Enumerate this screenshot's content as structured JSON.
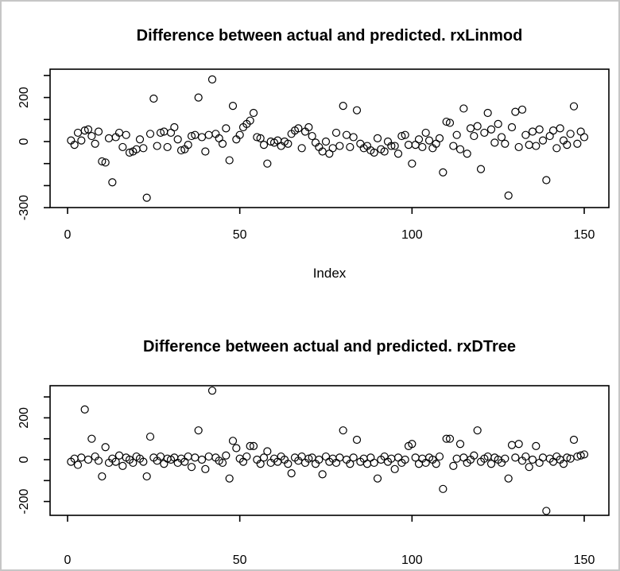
{
  "page": {
    "background": "#ffffff",
    "border_color": "#c6c6c6",
    "text_color": "#000000",
    "point_color": "#000000"
  },
  "chart_data": [
    {
      "type": "scatter",
      "title": "Difference between actual and predicted. rxLinmod",
      "xlabel": "Index",
      "ylabel": "",
      "marker": "open-circle",
      "grid": false,
      "x_ticks": [
        0,
        50,
        100,
        150
      ],
      "y_ticks": [
        {
          "v": 300,
          "label": ""
        },
        {
          "v": 200,
          "label": "200"
        },
        {
          "v": 100,
          "label": ""
        },
        {
          "v": 0,
          "label": "0"
        },
        {
          "v": -100,
          "label": ""
        },
        {
          "v": -200,
          "label": ""
        },
        {
          "v": -300,
          "label": "-300"
        }
      ],
      "xlim": [
        -5,
        156
      ],
      "ylim": [
        -310,
        300
      ],
      "x_start": 1,
      "y": [
        5,
        -15,
        40,
        5,
        50,
        55,
        25,
        -10,
        45,
        -90,
        -95,
        15,
        -185,
        20,
        40,
        -25,
        30,
        -50,
        -45,
        -35,
        10,
        -30,
        -255,
        35,
        195,
        -20,
        40,
        45,
        -25,
        40,
        65,
        10,
        -40,
        -35,
        -15,
        25,
        30,
        200,
        20,
        -45,
        30,
        282,
        35,
        15,
        -10,
        60,
        -85,
        162,
        10,
        30,
        65,
        80,
        95,
        130,
        20,
        15,
        -15,
        -100,
        0,
        -5,
        5,
        -20,
        0,
        -10,
        35,
        50,
        60,
        -30,
        45,
        65,
        25,
        -5,
        -25,
        -45,
        0,
        -55,
        -30,
        40,
        -20,
        162,
        30,
        -25,
        20,
        142,
        -10,
        -30,
        -20,
        -40,
        -50,
        15,
        -35,
        -45,
        0,
        -20,
        -20,
        -55,
        25,
        30,
        -15,
        -100,
        -15,
        10,
        -25,
        40,
        5,
        -30,
        -10,
        15,
        -140,
        90,
        85,
        -20,
        30,
        -35,
        150,
        -55,
        60,
        25,
        70,
        -125,
        40,
        130,
        55,
        -5,
        80,
        20,
        -10,
        -245,
        65,
        135,
        -25,
        145,
        30,
        -15,
        45,
        -20,
        55,
        5,
        -175,
        25,
        50,
        -30,
        60,
        5,
        -15,
        35,
        160,
        -10,
        45,
        20
      ]
    },
    {
      "type": "scatter",
      "title": "Difference between actual and predicted. rxDTree",
      "xlabel": "",
      "ylabel": "",
      "marker": "open-circle",
      "grid": false,
      "x_ticks": [
        0,
        50,
        100,
        150
      ],
      "y_ticks": [
        {
          "v": 300,
          "label": ""
        },
        {
          "v": 200,
          "label": "200"
        },
        {
          "v": 100,
          "label": ""
        },
        {
          "v": 0,
          "label": "0"
        },
        {
          "v": -100,
          "label": ""
        },
        {
          "v": -200,
          "label": "-200"
        }
      ],
      "xlim": [
        -5,
        156
      ],
      "ylim": [
        -265,
        355
      ],
      "x_start": 1,
      "y": [
        -10,
        5,
        -25,
        10,
        240,
        0,
        100,
        15,
        -5,
        -80,
        60,
        -15,
        5,
        -10,
        20,
        -30,
        10,
        0,
        -15,
        15,
        5,
        -10,
        -80,
        110,
        10,
        -5,
        15,
        -20,
        5,
        0,
        10,
        -15,
        5,
        -10,
        15,
        -35,
        10,
        140,
        0,
        -45,
        15,
        330,
        10,
        -5,
        -15,
        20,
        -90,
        90,
        55,
        5,
        -10,
        15,
        65,
        65,
        0,
        -20,
        10,
        40,
        -15,
        5,
        -10,
        15,
        0,
        -20,
        -65,
        10,
        -5,
        15,
        -15,
        5,
        10,
        -20,
        0,
        -70,
        15,
        -10,
        5,
        -15,
        10,
        140,
        0,
        -20,
        10,
        95,
        -10,
        5,
        -20,
        10,
        -15,
        -90,
        0,
        15,
        -10,
        5,
        -45,
        10,
        -15,
        0,
        65,
        75,
        10,
        -20,
        5,
        -15,
        10,
        0,
        -20,
        15,
        -140,
        100,
        100,
        -30,
        5,
        75,
        10,
        -15,
        0,
        20,
        140,
        -10,
        5,
        15,
        -20,
        10,
        0,
        -15,
        5,
        -90,
        70,
        10,
        75,
        -5,
        15,
        -35,
        0,
        65,
        -15,
        10,
        -245,
        5,
        -10,
        15,
        0,
        -20,
        10,
        5,
        95,
        15,
        20,
        25
      ]
    }
  ]
}
